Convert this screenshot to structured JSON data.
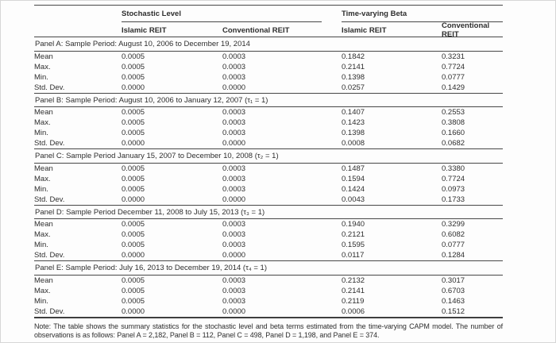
{
  "table": {
    "column_groups": [
      {
        "label": "Stochastic Level",
        "columns": [
          "Islamic REIT",
          "Conventional REIT"
        ]
      },
      {
        "label": "Time-varying Beta",
        "columns": [
          "Islamic REIT",
          "Conventional REIT"
        ]
      }
    ],
    "panels": [
      {
        "title": "Panel A: Sample Period: August 10, 2006 to December 19, 2014",
        "rows": [
          {
            "label": "Mean",
            "values": [
              "0.0005",
              "0.0003",
              "0.1842",
              "0.3231"
            ]
          },
          {
            "label": "Max.",
            "values": [
              "0.0005",
              "0.0003",
              "0.2141",
              "0.7724"
            ]
          },
          {
            "label": "Min.",
            "values": [
              "0.0005",
              "0.0003",
              "0.1398",
              "0.0777"
            ]
          },
          {
            "label": "Std. Dev.",
            "values": [
              "0.0000",
              "0.0000",
              "0.0257",
              "0.1429"
            ]
          }
        ]
      },
      {
        "title": "Panel B: Sample Period: August 10, 2006 to January 12, 2007 (τ₁ = 1)",
        "rows": [
          {
            "label": "Mean",
            "values": [
              "0.0005",
              "0.0003",
              "0.1407",
              "0.2553"
            ]
          },
          {
            "label": "Max.",
            "values": [
              "0.0005",
              "0.0003",
              "0.1423",
              "0.3808"
            ]
          },
          {
            "label": "Min.",
            "values": [
              "0.0005",
              "0.0003",
              "0.1398",
              "0.1660"
            ]
          },
          {
            "label": "Std. Dev.",
            "values": [
              "0.0000",
              "0.0000",
              "0.0008",
              "0.0682"
            ]
          }
        ]
      },
      {
        "title": "Panel C: Sample Period January 15, 2007 to December 10, 2008 (τ₂ = 1)",
        "rows": [
          {
            "label": "Mean",
            "values": [
              "0.0005",
              "0.0003",
              "0.1487",
              "0.3380"
            ]
          },
          {
            "label": "Max.",
            "values": [
              "0.0005",
              "0.0003",
              "0.1594",
              "0.7724"
            ]
          },
          {
            "label": "Min.",
            "values": [
              "0.0005",
              "0.0003",
              "0.1424",
              "0.0973"
            ]
          },
          {
            "label": "Std. Dev.",
            "values": [
              "0.0000",
              "0.0000",
              "0.0043",
              "0.1733"
            ]
          }
        ]
      },
      {
        "title": "Panel D: Sample Period December 11, 2008 to July 15, 2013 (τ₃ = 1)",
        "rows": [
          {
            "label": "Mean",
            "values": [
              "0.0005",
              "0.0003",
              "0.1940",
              "0.3299"
            ]
          },
          {
            "label": "Max.",
            "values": [
              "0.0005",
              "0.0003",
              "0.2121",
              "0.6082"
            ]
          },
          {
            "label": "Min.",
            "values": [
              "0.0005",
              "0.0003",
              "0.1595",
              "0.0777"
            ]
          },
          {
            "label": "Std. Dev.",
            "values": [
              "0.0000",
              "0.0000",
              "0.0117",
              "0.1284"
            ]
          }
        ]
      },
      {
        "title": "Panel E: Sample Period: July 16, 2013 to December 19, 2014 (τ₄ = 1)",
        "rows": [
          {
            "label": "Mean",
            "values": [
              "0.0005",
              "0.0003",
              "0.2132",
              "0.3017"
            ]
          },
          {
            "label": "Max.",
            "values": [
              "0.0005",
              "0.0003",
              "0.2141",
              "0.6703"
            ]
          },
          {
            "label": "Min.",
            "values": [
              "0.0005",
              "0.0003",
              "0.2119",
              "0.1463"
            ]
          },
          {
            "label": "Std. Dev.",
            "values": [
              "0.0000",
              "0.0000",
              "0.0006",
              "0.1512"
            ]
          }
        ]
      }
    ],
    "note": "Note: The table shows the summary statistics for the stochastic level and beta terms estimated from the time-varying CAPM model. The number of observations is as follows: Panel A = 2,182, Panel B = 112, Panel C = 498, Panel D = 1,198, and Panel E = 374."
  }
}
